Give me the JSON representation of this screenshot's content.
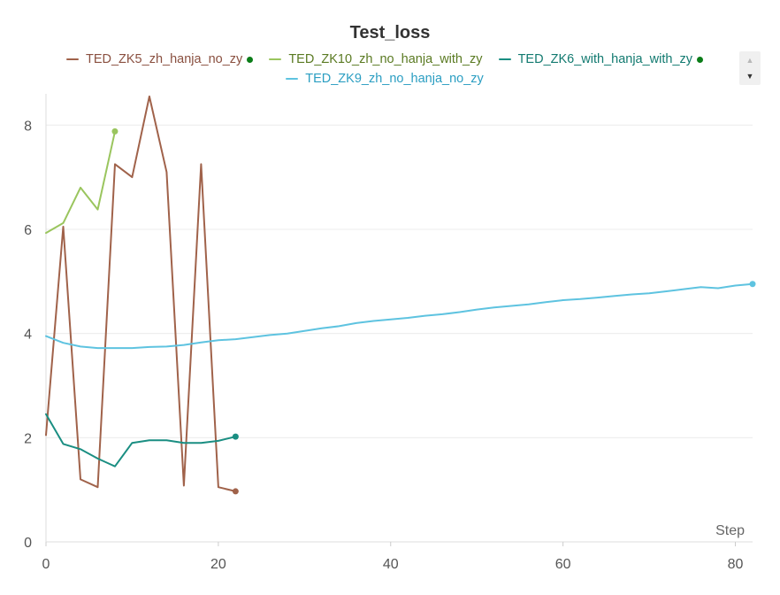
{
  "chart_data": {
    "type": "line",
    "title": "Test_loss",
    "xlabel": "Step",
    "ylabel": "",
    "xlim": [
      0,
      82
    ],
    "ylim": [
      0,
      8.6
    ],
    "x_ticks": [
      0,
      20,
      40,
      60,
      80
    ],
    "y_ticks": [
      0,
      2,
      4,
      6,
      8
    ],
    "grid": "horizontal",
    "legend_position": "top",
    "series": [
      {
        "name": "TED_ZK5_zh_hanja_no_zy",
        "color": "#a0624a",
        "text_color": "#8a5040",
        "live_dot": true,
        "x": [
          0,
          2,
          4,
          6,
          8,
          10,
          12,
          14,
          16,
          18,
          20,
          22
        ],
        "y": [
          2.05,
          6.05,
          1.2,
          1.05,
          7.25,
          7.0,
          8.55,
          7.1,
          1.08,
          7.25,
          1.05,
          0.97
        ]
      },
      {
        "name": "TED_ZK10_zh_no_hanja_with_zy",
        "color": "#9ac55e",
        "text_color": "#5a7a22",
        "live_dot": false,
        "x": [
          0,
          2,
          4,
          6,
          8
        ],
        "y": [
          5.93,
          6.12,
          6.8,
          6.38,
          7.88
        ]
      },
      {
        "name": "TED_ZK6_with_hanja_with_zy",
        "color": "#1a8e82",
        "text_color": "#127a70",
        "live_dot": true,
        "x": [
          0,
          2,
          4,
          6,
          8,
          10,
          12,
          14,
          16,
          18,
          20,
          22
        ],
        "y": [
          2.45,
          1.88,
          1.78,
          1.6,
          1.45,
          1.9,
          1.95,
          1.95,
          1.9,
          1.9,
          1.94,
          2.02
        ]
      },
      {
        "name": "TED_ZK9_zh_no_hanja_no_zy",
        "color": "#5ec3e0",
        "text_color": "#2b9ec2",
        "live_dot": false,
        "x": [
          0,
          2,
          4,
          6,
          8,
          10,
          12,
          14,
          16,
          18,
          20,
          22,
          24,
          26,
          28,
          30,
          32,
          34,
          36,
          38,
          40,
          42,
          44,
          46,
          48,
          50,
          52,
          54,
          56,
          58,
          60,
          62,
          64,
          66,
          68,
          70,
          72,
          74,
          76,
          78,
          80,
          82
        ],
        "y": [
          3.95,
          3.82,
          3.75,
          3.72,
          3.72,
          3.72,
          3.74,
          3.75,
          3.78,
          3.83,
          3.87,
          3.89,
          3.93,
          3.97,
          4.0,
          4.05,
          4.1,
          4.14,
          4.2,
          4.24,
          4.27,
          4.3,
          4.34,
          4.37,
          4.41,
          4.46,
          4.5,
          4.53,
          4.56,
          4.6,
          4.64,
          4.66,
          4.69,
          4.72,
          4.75,
          4.77,
          4.81,
          4.85,
          4.89,
          4.87,
          4.92,
          4.95
        ]
      }
    ]
  },
  "legend_scroll": {
    "up_icon": "▲",
    "down_icon": "▼"
  }
}
